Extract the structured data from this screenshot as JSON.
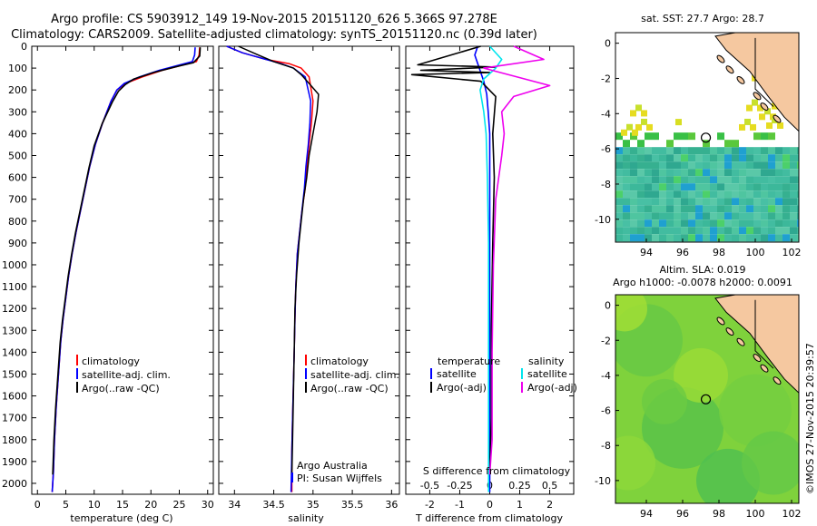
{
  "header": {
    "title_line1": "Argo profile: CS 5903912_149 19-Nov-2015 20151120_626 5.366S 97.278E",
    "title_line2": "Climatology: CARS2009. Satellite-adjusted climatology: synTS_20151120.nc (0.39d later)"
  },
  "colors": {
    "climatology": "#ff0000",
    "satellite": "#0000ff",
    "argo": "#000000",
    "satellite_s": "#00e5ee",
    "argo_s": "#ee00ee",
    "land": "#f5c8a0",
    "ocean_sst": "#3cb89a",
    "ocean_sla": "#7fd23c"
  },
  "chart_data": [
    {
      "type": "line",
      "name": "temperature-profile",
      "xlabel": "temperature (deg C)",
      "ylabel": "",
      "xlim": [
        -1,
        31
      ],
      "ylim": [
        2050,
        0
      ],
      "xticks": [
        0,
        5,
        10,
        15,
        20,
        25,
        30
      ],
      "yticks": [
        0,
        100,
        200,
        300,
        400,
        500,
        600,
        700,
        800,
        900,
        1000,
        1100,
        1200,
        1300,
        1400,
        1500,
        1600,
        1700,
        1800,
        1900,
        2000
      ],
      "legend": [
        "climatology",
        "satellite-adj. clim.",
        "Argo(..raw -QC)"
      ],
      "series": [
        {
          "name": "climatology",
          "x": [
            28.6,
            28.5,
            28.0,
            22.0,
            18.5,
            15.5,
            14.0,
            13.0,
            11.5,
            10.2,
            9.2,
            8.4,
            7.6,
            6.8,
            6.1,
            5.5,
            5.0,
            4.5,
            4.1,
            3.7,
            3.3,
            3.0,
            2.8,
            2.6
          ],
          "y": [
            5,
            40,
            70,
            110,
            140,
            170,
            200,
            250,
            350,
            450,
            550,
            650,
            750,
            850,
            950,
            1050,
            1150,
            1250,
            1350,
            1500,
            1650,
            1800,
            1950,
            2040
          ]
        },
        {
          "name": "satellite-adj. clim.",
          "x": [
            27.8,
            27.7,
            27.3,
            21.5,
            18.0,
            15.3,
            14.0,
            13.0,
            11.5,
            10.2,
            9.2,
            8.4,
            7.6,
            6.8,
            6.1,
            5.5,
            5.0,
            4.5,
            4.1,
            3.7,
            3.3,
            3.0,
            2.8,
            2.6
          ],
          "y": [
            5,
            40,
            70,
            110,
            140,
            170,
            200,
            250,
            350,
            450,
            550,
            650,
            750,
            850,
            950,
            1050,
            1150,
            1250,
            1350,
            1500,
            1650,
            1800,
            1950,
            2040
          ]
        },
        {
          "name": "Argo(..raw -QC)",
          "x": [
            28.7,
            28.6,
            27.5,
            25.0,
            20.5,
            17.0,
            15.5,
            14.3,
            13.2,
            11.4,
            10.0,
            9.1,
            8.3,
            7.5,
            6.7,
            6.0,
            5.4,
            4.9,
            4.4,
            4.0,
            3.6,
            3.2,
            2.9,
            2.7
          ],
          "y": [
            5,
            45,
            75,
            90,
            120,
            150,
            175,
            205,
            255,
            355,
            455,
            555,
            655,
            755,
            855,
            955,
            1055,
            1155,
            1255,
            1355,
            1505,
            1655,
            1805,
            1960
          ]
        }
      ]
    },
    {
      "type": "line",
      "name": "salinity-profile",
      "xlabel": "salinity",
      "ylabel": "",
      "xlim": [
        33.8,
        36.1
      ],
      "ylim": [
        2050,
        0
      ],
      "xticks": [
        34,
        34.5,
        35,
        35.5,
        36
      ],
      "legend": [
        "climatology",
        "satellite-adj. clim.",
        "Argo(..raw -QC)"
      ],
      "annotations": [
        "Argo Australia",
        "PI: Susan Wijffels"
      ],
      "series": [
        {
          "name": "climatology",
          "x": [
            33.9,
            34.1,
            34.4,
            34.7,
            34.85,
            34.95,
            35.0,
            34.98,
            34.95,
            34.92,
            34.9,
            34.86,
            34.83,
            34.8,
            34.78,
            34.77,
            34.76,
            34.75,
            34.74,
            34.73,
            34.73
          ],
          "y": [
            0,
            30,
            60,
            80,
            100,
            140,
            250,
            350,
            450,
            550,
            650,
            750,
            850,
            950,
            1100,
            1250,
            1400,
            1550,
            1700,
            1850,
            2040
          ]
        },
        {
          "name": "satellite-adj. clim.",
          "x": [
            33.9,
            34.1,
            34.4,
            34.6,
            34.75,
            34.9,
            34.97,
            34.96,
            34.94,
            34.91,
            34.89,
            34.86,
            34.83,
            34.8,
            34.78,
            34.77,
            34.76,
            34.75,
            34.74,
            34.73,
            34.72
          ],
          "y": [
            0,
            30,
            60,
            80,
            100,
            140,
            250,
            350,
            450,
            550,
            650,
            750,
            850,
            950,
            1100,
            1250,
            1400,
            1550,
            1700,
            1850,
            2040
          ]
        },
        {
          "name": "Argo(..raw -QC)",
          "x": [
            34.05,
            34.3,
            34.5,
            34.75,
            34.85,
            34.95,
            35.07,
            35.05,
            35.0,
            34.95,
            34.92,
            34.88,
            34.85,
            34.82,
            34.79,
            34.77,
            34.76,
            34.75,
            34.74,
            34.73
          ],
          "y": [
            0,
            40,
            70,
            100,
            130,
            170,
            220,
            300,
            400,
            500,
            600,
            700,
            800,
            900,
            1050,
            1200,
            1400,
            1600,
            1800,
            1960
          ]
        }
      ]
    },
    {
      "type": "line",
      "name": "difference-profile",
      "xlabel": "T difference from climatology",
      "ylabel": "",
      "xlim_T": [
        -2.8,
        2.8
      ],
      "xticks_T": [
        -2,
        -1,
        0,
        1,
        2
      ],
      "xlabel_S": "S difference from climatology",
      "xlim_S": [
        -0.7,
        0.7
      ],
      "xticks_S": [
        -0.5,
        -0.25,
        0,
        0.25,
        0.5
      ],
      "xticklabels_S": [
        "-0.5",
        "-0.25",
        "0",
        "0.25",
        "0.5"
      ],
      "ylim": [
        2050,
        0
      ],
      "legend_T_title": "temperature",
      "legend_S_title": "salinity",
      "legend_T": [
        "satellite",
        "Argo(-adj)"
      ],
      "legend_S": [
        "satellite",
        "Argo(-adj)"
      ],
      "series": [
        {
          "name": "T satellite",
          "x": [
            -0.4,
            -0.5,
            -0.4,
            -0.3,
            -0.2,
            -0.1,
            -0.05,
            0,
            0,
            0,
            0,
            0,
            0
          ],
          "y": [
            0,
            40,
            80,
            120,
            160,
            220,
            300,
            400,
            600,
            900,
            1300,
            1700,
            2040
          ]
        },
        {
          "name": "T Argo(-adj)",
          "x": [
            -0.3,
            -2.4,
            0.2,
            -2.3,
            0.0,
            -2.6,
            -0.3,
            0.2,
            0.1,
            0.15,
            0.1,
            0.05,
            0.05,
            0.0
          ],
          "y": [
            0,
            85,
            95,
            110,
            120,
            130,
            160,
            230,
            400,
            600,
            900,
            1300,
            1700,
            1960
          ]
        },
        {
          "name": "S satellite",
          "x": [
            0.0,
            0.1,
            0.05,
            -0.05,
            -0.08,
            -0.05,
            -0.03,
            -0.02,
            -0.01,
            -0.01,
            -0.01,
            -0.01
          ],
          "y": [
            0,
            60,
            100,
            150,
            200,
            300,
            400,
            600,
            900,
            1300,
            1700,
            2040
          ]
        },
        {
          "name": "S Argo(-adj)",
          "x": [
            0.2,
            0.45,
            -0.05,
            0.5,
            0.2,
            0.1,
            0.12,
            0.1,
            0.05,
            0.03,
            0.02,
            0.02,
            0.0
          ],
          "y": [
            0,
            60,
            100,
            180,
            230,
            300,
            400,
            500,
            700,
            1000,
            1400,
            1800,
            1960
          ]
        }
      ]
    }
  ],
  "maps": {
    "top": {
      "title": "sat. SST: 27.7 Argo: 28.7",
      "xticks": [
        "94",
        "96",
        "98",
        "100",
        "102"
      ],
      "yticks": [
        "0",
        "-2",
        "-4",
        "-6",
        "-8",
        "-10"
      ]
    },
    "bottom": {
      "title_line1": "Altim. SLA: 0.019",
      "title_line2": "Argo h1000: -0.0078 h2000: 0.0091",
      "xticks": [
        "94",
        "96",
        "98",
        "100",
        "102"
      ],
      "yticks": [
        "0",
        "-2",
        "-4",
        "-6",
        "-8",
        "-10"
      ]
    },
    "credit": "©IMOS 27-Nov-2015 20:39:57"
  }
}
